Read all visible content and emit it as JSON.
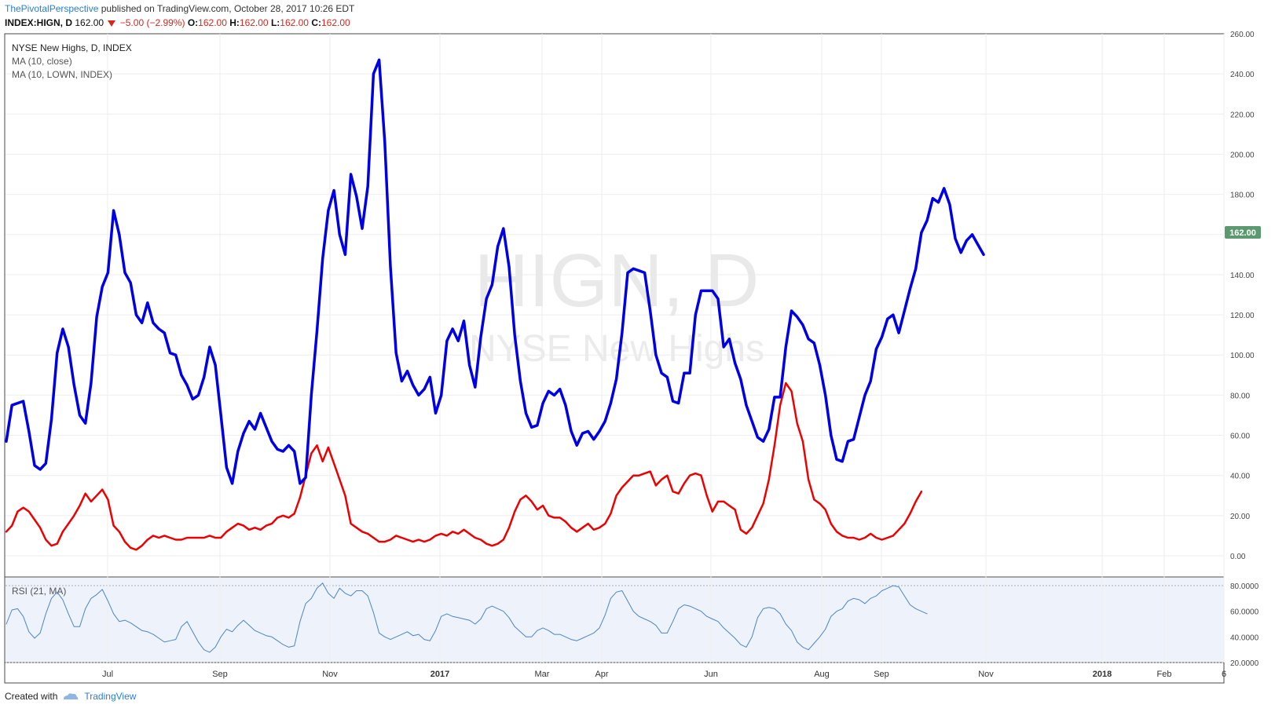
{
  "header": {
    "author": "ThePivotalPerspective",
    "published_text": "published on TradingView.com, October 28, 2017 10:26 EDT"
  },
  "quote": {
    "symbol": "INDEX:HIGN, D",
    "last": "162.00",
    "change": "−5.00 (−2.99%)",
    "o_label": "O:",
    "o": "162.00",
    "h_label": "H:",
    "h": "162.00",
    "l_label": "L:",
    "l": "162.00",
    "c_label": "C:",
    "c": "162.00"
  },
  "watermark": {
    "symbol": "HIGN, D",
    "name": "NYSE New Highs"
  },
  "price_tag": "162.00",
  "footer": {
    "created_with": "Created with",
    "brand": "TradingView"
  },
  "colors": {
    "main_series": "#0000e6",
    "ma_lown": "#ee0000",
    "rsi_line": "#4a86c8",
    "price_tag_bg": "#5a9a6e"
  },
  "chart_data": [
    {
      "type": "line",
      "title": "NYSE New Highs, D, INDEX",
      "legend": [
        "NYSE New Highs, D, INDEX",
        "MA (10, close)",
        "MA (10, LOWN, INDEX)"
      ],
      "legend_placement": "top-left",
      "grid": true,
      "ylim": [
        0,
        260
      ],
      "y_ticks": [
        "0.00",
        "20.00",
        "40.00",
        "60.00",
        "80.00",
        "100.00",
        "120.00",
        "140.00",
        "160.00",
        "180.00",
        "200.00",
        "220.00",
        "240.00",
        "260.00"
      ],
      "x_ticks": [
        "Jul",
        "Sep",
        "Nov",
        "2017",
        "Mar",
        "Apr",
        "Jun",
        "Aug",
        "Sep",
        "Nov",
        "2018",
        "Feb",
        "6"
      ],
      "series": [
        {
          "name": "MA (10, close)",
          "color": "#0000e6",
          "values": [
            57,
            75,
            76,
            77,
            62,
            45,
            43,
            46,
            68,
            101,
            113,
            104,
            85,
            70,
            66,
            86,
            119,
            134,
            141,
            172,
            160,
            141,
            136,
            120,
            116,
            126,
            116,
            113,
            111,
            101,
            100,
            90,
            85,
            78,
            80,
            89,
            104,
            95,
            70,
            44,
            36,
            52,
            61,
            67,
            63,
            71,
            64,
            57,
            53,
            52,
            55,
            52,
            36,
            39,
            80,
            112,
            148,
            172,
            182,
            160,
            150,
            190,
            179,
            163,
            184,
            240,
            247,
            206,
            144,
            101,
            87,
            92,
            85,
            80,
            83,
            89,
            71,
            80,
            107,
            113,
            107,
            117,
            95,
            84,
            109,
            128,
            135,
            154,
            163,
            144,
            110,
            87,
            71,
            64,
            65,
            76,
            82,
            80,
            83,
            75,
            62,
            55,
            61,
            62,
            58,
            62,
            67,
            76,
            88,
            111,
            141,
            143,
            142,
            141,
            122,
            100,
            91,
            89,
            77,
            76,
            91,
            91,
            120,
            132,
            132,
            132,
            128,
            104,
            108,
            96,
            88,
            75,
            67,
            59,
            57,
            63,
            79,
            79,
            104,
            122,
            119,
            115,
            108,
            106,
            95,
            80,
            60,
            48,
            47,
            57,
            58,
            69,
            80,
            87,
            103,
            109,
            118,
            120,
            111,
            122,
            133,
            143,
            161,
            167,
            178,
            176,
            183,
            175,
            158,
            151,
            157,
            160,
            155,
            150
          ],
          "ylim": [
            0,
            260
          ]
        },
        {
          "name": "MA (10, LOWN, INDEX)",
          "color": "#ee0000",
          "values": [
            12,
            15,
            22,
            24,
            22,
            18,
            14,
            8,
            5,
            6,
            12,
            16,
            20,
            25,
            31,
            27,
            30,
            33,
            28,
            15,
            12,
            7,
            4,
            3,
            5,
            8,
            10,
            9,
            10,
            9,
            8,
            8,
            9,
            9,
            9,
            9,
            10,
            9,
            9,
            12,
            14,
            16,
            15,
            13,
            14,
            13,
            15,
            16,
            19,
            20,
            19,
            21,
            29,
            40,
            51,
            55,
            47,
            54,
            46,
            38,
            30,
            16,
            14,
            12,
            11,
            9,
            7,
            7,
            8,
            10,
            9,
            8,
            7,
            8,
            7,
            8,
            10,
            11,
            10,
            12,
            11,
            13,
            11,
            9,
            8,
            6,
            5,
            6,
            8,
            14,
            22,
            28,
            30,
            27,
            23,
            25,
            20,
            19,
            19,
            17,
            14,
            12,
            14,
            16,
            13,
            14,
            16,
            21,
            30,
            34,
            37,
            40,
            40,
            41,
            42,
            35,
            38,
            40,
            32,
            31,
            36,
            40,
            41,
            40,
            30,
            22,
            27,
            27,
            25,
            23,
            13,
            11,
            14,
            20,
            26,
            38,
            55,
            75,
            86,
            82,
            66,
            57,
            38,
            28,
            26,
            23,
            16,
            12,
            10,
            9,
            9,
            8,
            9,
            11,
            9,
            8,
            9,
            10,
            13,
            16,
            21,
            27,
            32
          ]
        }
      ]
    },
    {
      "type": "line",
      "title": "RSI (21, MA)",
      "legend": [
        "RSI (21, MA)"
      ],
      "ylim": [
        20,
        80
      ],
      "y_ticks": [
        "20.0000",
        "40.0000",
        "60.0000",
        "80.0000"
      ],
      "series": [
        {
          "name": "RSI (21, MA)",
          "color": "#4a86c8",
          "values": [
            50,
            61,
            62,
            56,
            44,
            39,
            43,
            58,
            70,
            75,
            69,
            58,
            48,
            48,
            62,
            70,
            73,
            77,
            68,
            58,
            52,
            53,
            51,
            48,
            45,
            44,
            42,
            39,
            36,
            37,
            38,
            48,
            52,
            44,
            36,
            30,
            28,
            32,
            40,
            46,
            44,
            49,
            53,
            49,
            45,
            43,
            41,
            40,
            37,
            34,
            32,
            33,
            52,
            66,
            70,
            78,
            82,
            74,
            70,
            78,
            74,
            72,
            76,
            76,
            72,
            59,
            43,
            40,
            38,
            40,
            42,
            44,
            41,
            42,
            38,
            37,
            45,
            56,
            58,
            56,
            55,
            54,
            53,
            50,
            54,
            62,
            64,
            62,
            60,
            55,
            48,
            44,
            40,
            40,
            45,
            47,
            45,
            42,
            42,
            40,
            38,
            37,
            39,
            41,
            43,
            47,
            57,
            70,
            75,
            76,
            68,
            60,
            56,
            54,
            52,
            49,
            43,
            43,
            52,
            62,
            65,
            64,
            62,
            60,
            56,
            54,
            52,
            47,
            43,
            39,
            34,
            32,
            40,
            55,
            62,
            63,
            62,
            58,
            50,
            45,
            36,
            32,
            30,
            35,
            40,
            46,
            56,
            60,
            62,
            68,
            70,
            69,
            66,
            70,
            72,
            76,
            78,
            80,
            79,
            72,
            65,
            62,
            60,
            58
          ]
        }
      ]
    }
  ]
}
